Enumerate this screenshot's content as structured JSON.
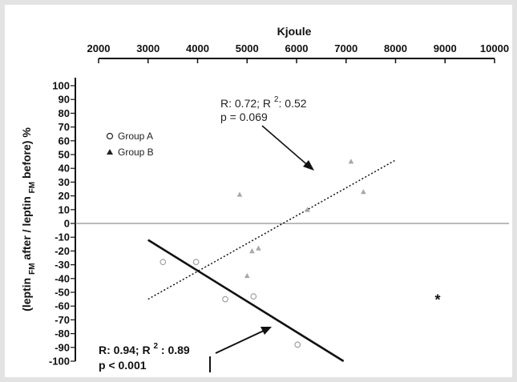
{
  "chart_data": {
    "type": "scatter",
    "title": "",
    "x_label": "Kjoule",
    "x_ticks": [
      2000,
      3000,
      4000,
      5000,
      6000,
      7000,
      8000,
      9000,
      10000
    ],
    "xlim": [
      2000,
      10000
    ],
    "y_label": "(leptin FM after / leptin FM before) %",
    "y_label_parts": [
      "(leptin ",
      "FM",
      " after / leptin ",
      "FM",
      " before) %"
    ],
    "y_ticks": [
      100,
      90,
      80,
      70,
      60,
      50,
      40,
      30,
      20,
      10,
      0,
      -10,
      -20,
      -30,
      -40,
      -50,
      -60,
      -70,
      -80,
      -90,
      -100
    ],
    "ylim": [
      -100,
      100
    ],
    "legend": {
      "position": "upper-left",
      "entries": [
        {
          "label": "Group A",
          "marker": "open-circle"
        },
        {
          "label": "Group B",
          "marker": "filled-triangle"
        }
      ]
    },
    "series": [
      {
        "name": "Group A",
        "marker": "open-circle",
        "color": "#9a9a9a",
        "points": [
          {
            "x": 3300,
            "y": -28
          },
          {
            "x": 3970,
            "y": -28
          },
          {
            "x": 4560,
            "y": -55
          },
          {
            "x": 5130,
            "y": -53
          },
          {
            "x": 6020,
            "y": -88
          }
        ]
      },
      {
        "name": "Group B",
        "marker": "filled-triangle",
        "color": "#a8a8a8",
        "points": [
          {
            "x": 4850,
            "y": 21
          },
          {
            "x": 5000,
            "y": -38
          },
          {
            "x": 5100,
            "y": -20
          },
          {
            "x": 5230,
            "y": -18
          },
          {
            "x": 6220,
            "y": 10
          },
          {
            "x": 7100,
            "y": 45
          },
          {
            "x": 7350,
            "y": 23
          }
        ]
      }
    ],
    "regression_lines": [
      {
        "group": "Group B",
        "style": "dotted",
        "from": {
          "x": 3000,
          "y": -55
        },
        "to": {
          "x": 8000,
          "y": 46
        }
      },
      {
        "group": "Group A",
        "style": "solid",
        "from": {
          "x": 3000,
          "y": -12
        },
        "to": {
          "x": 6950,
          "y": -100
        }
      }
    ],
    "outlier": {
      "symbol": "*",
      "x": 8850,
      "y": -55
    },
    "annotations": {
      "group_b_stats": {
        "line1": "R: 0.72; R ",
        "sup": "2",
        "line1_end": ": 0.52",
        "line2": "p = 0.069"
      },
      "group_a_stats": {
        "line1": "R: 0.94; R ",
        "sup": "2",
        "line1_end": " : 0.89",
        "line2": "p < 0.001"
      }
    },
    "colors": {
      "axis": "#111111",
      "zero_line": "#777777",
      "markers": "#9a9a9a",
      "regression": "#111111"
    }
  }
}
